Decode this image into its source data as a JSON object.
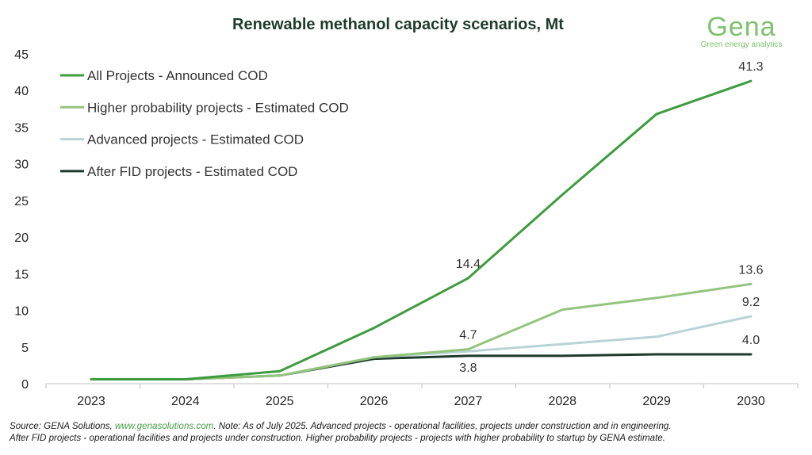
{
  "logo": {
    "name": "Gena",
    "tagline": "Green energy analytics",
    "color": "#7cc26b"
  },
  "footnote": {
    "source_prefix": "Source: GENA Solutions, ",
    "link": "www.genasolutions.com",
    "line1_rest": ". Note: As of July 2025. Advanced projects - operational facilities, projects under construction and in engineering.",
    "line2": "After FID projects - operational facilities and projects under construction. Higher probability projects - projects with higher probability to startup by GENA estimate."
  },
  "chart_data": {
    "type": "line",
    "title": "Renewable methanol capacity scenarios, Mt",
    "xlabel": "",
    "ylabel": "",
    "ylim": [
      0,
      45
    ],
    "yticks": [
      0,
      5,
      10,
      15,
      20,
      25,
      30,
      35,
      40,
      45
    ],
    "grid": false,
    "legend_position": "top-left",
    "categories": [
      "2023",
      "2024",
      "2025",
      "2026",
      "2027",
      "2028",
      "2029",
      "2030"
    ],
    "series": [
      {
        "name": "All Projects - Announced COD",
        "color": "#3f9b3f",
        "values": [
          0.6,
          0.6,
          1.7,
          7.6,
          14.4,
          25.8,
          36.8,
          41.3
        ]
      },
      {
        "name": "Higher probability projects - Estimated COD",
        "color": "#93c47d",
        "values": [
          0.6,
          0.6,
          1.1,
          3.6,
          4.7,
          10.1,
          11.7,
          13.6
        ]
      },
      {
        "name": "Advanced projects - Estimated COD",
        "color": "#b8d3d5",
        "values": [
          0.6,
          0.6,
          1.1,
          3.6,
          4.4,
          5.4,
          6.4,
          9.2
        ]
      },
      {
        "name": "After FID projects - Estimated COD",
        "color": "#1e3a2c",
        "values": [
          0.6,
          0.6,
          1.1,
          3.4,
          3.8,
          3.8,
          4.0,
          4.0
        ]
      }
    ],
    "data_labels": [
      {
        "series": 0,
        "category": "2027",
        "text": "14.4",
        "position": "above"
      },
      {
        "series": 0,
        "category": "2030",
        "text": "41.3",
        "position": "above"
      },
      {
        "series": 1,
        "category": "2027",
        "text": "4.7",
        "position": "above"
      },
      {
        "series": 1,
        "category": "2030",
        "text": "13.6",
        "position": "above"
      },
      {
        "series": 2,
        "category": "2030",
        "text": "9.2",
        "position": "above"
      },
      {
        "series": 3,
        "category": "2027",
        "text": "3.8",
        "position": "below"
      },
      {
        "series": 3,
        "category": "2030",
        "text": "4.0",
        "position": "above"
      }
    ]
  }
}
